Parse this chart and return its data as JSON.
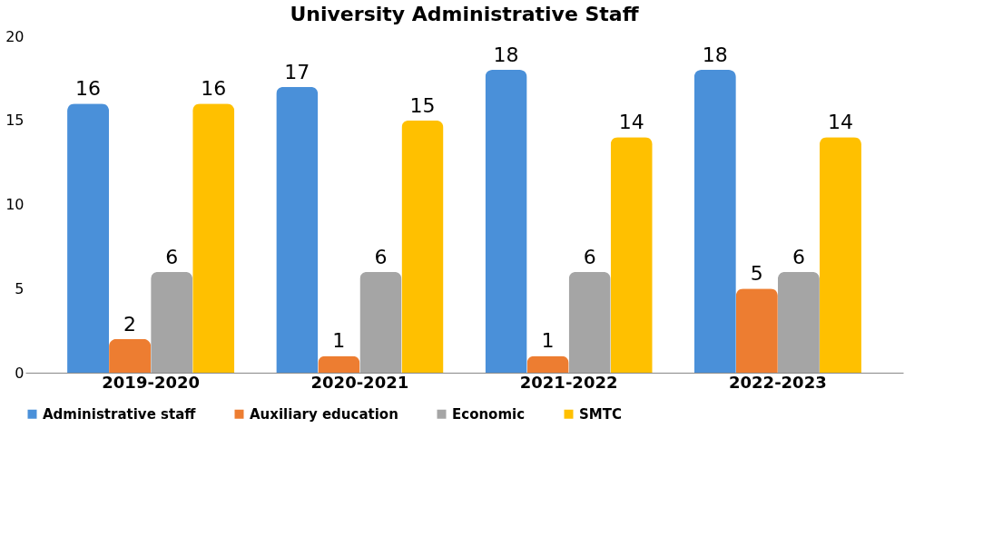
{
  "chart_data": {
    "type": "bar",
    "title": "University Administrative Staff",
    "categories": [
      "2019-2020",
      "2020-2021",
      "2021-2022",
      "2022-2023"
    ],
    "series": [
      {
        "name": "Administrative staff",
        "color": "#4a90d9",
        "values": [
          16,
          17,
          18,
          18
        ]
      },
      {
        "name": "Auxiliary education",
        "color": "#ed7d31",
        "values": [
          2,
          1,
          1,
          5
        ]
      },
      {
        "name": "Economic",
        "color": "#a5a5a5",
        "values": [
          6,
          6,
          6,
          6
        ]
      },
      {
        "name": "SMTC",
        "color": "#ffc000",
        "values": [
          16,
          15,
          14,
          14
        ]
      }
    ],
    "ylim": [
      0,
      20
    ],
    "yticks": [
      0,
      5,
      10,
      15,
      20
    ],
    "grid": false,
    "legend": "bottom",
    "data_labels": true
  }
}
